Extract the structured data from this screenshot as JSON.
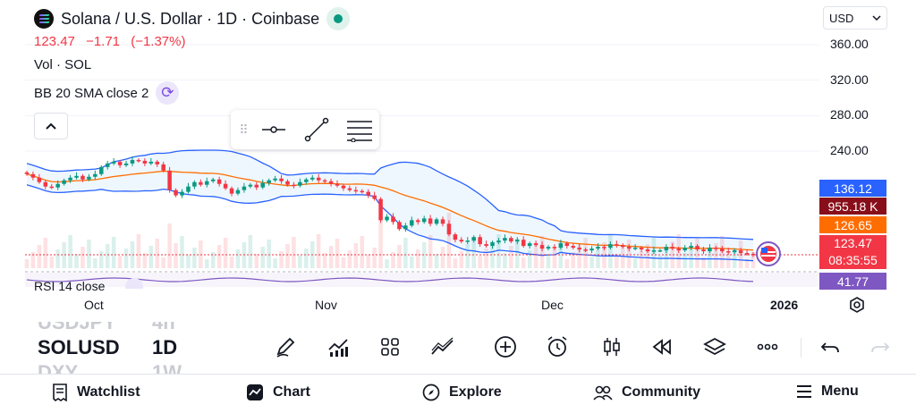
{
  "header": {
    "title": "Solana / U.S. Dollar · 1D · Coinbase",
    "price": "123.47",
    "change": "−1.71",
    "change_pct": "(−1.37%)"
  },
  "indicators": {
    "volume_label": "Vol · SOL",
    "bb_label": "BB 20 SMA close 2",
    "rsi_label": "RSI 14 close"
  },
  "currency": {
    "value": "USD"
  },
  "axis": {
    "y_ticks": [
      "360.00",
      "320.00",
      "280.00",
      "240.00"
    ],
    "x_ticks": [
      "Oct",
      "Nov",
      "Dec",
      "2026"
    ]
  },
  "badges": {
    "bb_upper": "136.12",
    "volume": "955.18 K",
    "bb_basis": "126.65",
    "last_price": "123.47",
    "countdown": "08:35:55",
    "rsi": "41.77"
  },
  "colors": {
    "up": "#089981",
    "down": "#f23645",
    "bb_band": "#2962ff",
    "bb_basis": "#ff6d00",
    "volume_badge": "#880e1a",
    "rsi_line": "#7e57c2",
    "accent": "#2962ff"
  },
  "chart_data": {
    "type": "candlestick",
    "y_range": [
      100,
      370
    ],
    "x_ticks": [
      "Oct",
      "Nov",
      "Dec",
      "2026"
    ],
    "last_price": 123.47,
    "bb_upper_last": 136.12,
    "bb_basis_last": 126.65,
    "rsi_last": 41.77,
    "close_series": [
      214,
      210,
      205,
      200,
      199,
      203,
      207,
      210,
      212,
      208,
      211,
      214,
      222,
      226,
      228,
      224,
      226,
      230,
      229,
      226,
      228,
      225,
      218,
      196,
      190,
      194,
      200,
      205,
      202,
      206,
      208,
      203,
      198,
      192,
      196,
      200,
      202,
      199,
      204,
      207,
      209,
      206,
      202,
      201,
      205,
      208,
      210,
      207,
      206,
      203,
      201,
      198,
      196,
      195,
      194,
      190,
      186,
      162,
      166,
      160,
      152,
      156,
      162,
      160,
      164,
      158,
      163,
      158,
      146,
      140,
      138,
      139,
      143,
      135,
      133,
      137,
      139,
      142,
      138,
      140,
      133,
      136,
      134,
      130,
      132,
      131,
      136,
      133,
      131,
      129,
      128,
      130,
      132,
      131,
      135,
      134,
      132,
      130,
      131,
      129,
      127,
      128,
      128,
      132,
      130,
      128,
      131,
      133,
      129,
      127,
      131,
      130,
      127,
      126,
      128,
      125,
      124,
      123.47
    ]
  },
  "panel": {
    "symbols": [
      "USDJPY",
      "SOLUSD",
      "DXY"
    ],
    "timeframes": [
      "4h",
      "1D",
      "1W"
    ]
  },
  "toolbar_icons": [
    "pencil-icon",
    "chart-line-icon",
    "grid-icon",
    "line-tool-icon",
    "add-circle-icon",
    "alarm-icon",
    "candles-icon",
    "replay-icon",
    "layers-icon",
    "more-icon",
    "undo-icon",
    "redo-icon"
  ],
  "nav": {
    "watchlist": "Watchlist",
    "chart": "Chart",
    "explore": "Explore",
    "community": "Community",
    "menu": "Menu"
  }
}
